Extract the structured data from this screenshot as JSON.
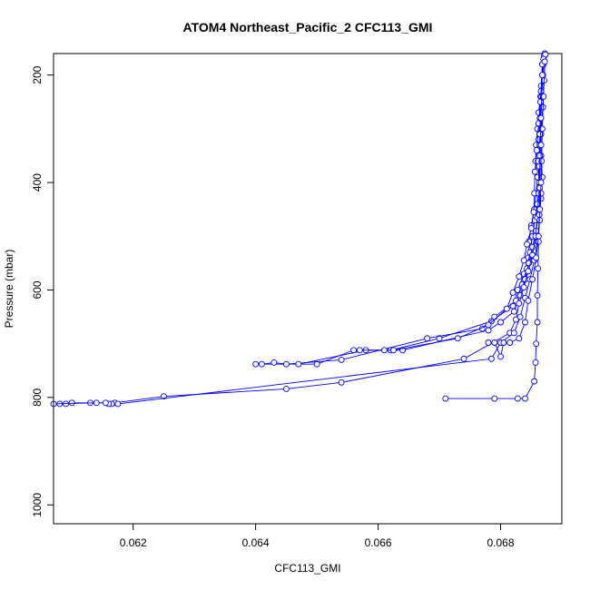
{
  "chart_data": {
    "type": "line",
    "title": "ATOM4 Northeast_Pacific_2 CFC113_GMI",
    "xlabel": "CFC113_GMI",
    "ylabel": "Pressure (mbar)",
    "xlim": [
      0.0607,
      0.069
    ],
    "ylim": [
      1035,
      160
    ],
    "y_reversed": true,
    "x_ticks": [
      {
        "value": 0.062,
        "label": "0.062"
      },
      {
        "value": 0.064,
        "label": "0.064"
      },
      {
        "value": 0.066,
        "label": "0.066"
      },
      {
        "value": 0.068,
        "label": "0.068"
      }
    ],
    "y_ticks": [
      {
        "value": 200,
        "label": "200"
      },
      {
        "value": 400,
        "label": "400"
      },
      {
        "value": 600,
        "label": "600"
      },
      {
        "value": 800,
        "label": "800"
      },
      {
        "value": 1000,
        "label": "1000"
      }
    ],
    "grid": false,
    "legend": "none",
    "series_color": "#0000ff",
    "series": [
      {
        "points": [
          [
            0.06872,
            160
          ],
          [
            0.0687,
            180
          ],
          [
            0.06868,
            200
          ],
          [
            0.06866,
            220
          ],
          [
            0.06865,
            240
          ],
          [
            0.06862,
            270
          ],
          [
            0.0686,
            300
          ],
          [
            0.06858,
            330
          ],
          [
            0.06857,
            360
          ],
          [
            0.0686,
            390
          ],
          [
            0.06858,
            420
          ],
          [
            0.06855,
            450
          ],
          [
            0.0685,
            480
          ],
          [
            0.06846,
            510
          ],
          [
            0.06845,
            540
          ],
          [
            0.06838,
            570
          ],
          [
            0.06828,
            600
          ],
          [
            0.0682,
            630
          ],
          [
            0.06785,
            658
          ],
          [
            0.067,
            690
          ],
          [
            0.0662,
            712
          ],
          [
            0.0656,
            712
          ],
          [
            0.065,
            738
          ],
          [
            0.064,
            738
          ]
        ]
      },
      {
        "points": [
          [
            0.06871,
            165
          ],
          [
            0.06869,
            200
          ],
          [
            0.06867,
            240
          ],
          [
            0.06864,
            280
          ],
          [
            0.06862,
            320
          ],
          [
            0.06861,
            360
          ],
          [
            0.06863,
            400
          ],
          [
            0.0686,
            440
          ],
          [
            0.06856,
            470
          ],
          [
            0.06852,
            500
          ],
          [
            0.06848,
            530
          ],
          [
            0.06843,
            560
          ],
          [
            0.06835,
            590
          ],
          [
            0.06825,
            620
          ],
          [
            0.0679,
            650
          ],
          [
            0.0677,
            672
          ],
          [
            0.0668,
            690
          ],
          [
            0.0654,
            730
          ],
          [
            0.0645,
            738
          ],
          [
            0.0643,
            735
          ],
          [
            0.0641,
            738
          ]
        ]
      },
      {
        "points": [
          [
            0.06873,
            162
          ],
          [
            0.06871,
            210
          ],
          [
            0.06869,
            260
          ],
          [
            0.06866,
            310
          ],
          [
            0.06866,
            350
          ],
          [
            0.06868,
            390
          ],
          [
            0.06866,
            430
          ],
          [
            0.06862,
            460
          ],
          [
            0.06858,
            490
          ],
          [
            0.06852,
            520
          ],
          [
            0.06846,
            550
          ],
          [
            0.0684,
            580
          ],
          [
            0.06832,
            610
          ],
          [
            0.06822,
            640
          ],
          [
            0.068,
            660
          ],
          [
            0.0678,
            675
          ],
          [
            0.0664,
            712
          ],
          [
            0.0658,
            712
          ],
          [
            0.0647,
            738
          ]
        ]
      },
      {
        "points": [
          [
            0.0687,
            170
          ],
          [
            0.06866,
            230
          ],
          [
            0.06862,
            290
          ],
          [
            0.06859,
            340
          ],
          [
            0.06856,
            380
          ],
          [
            0.06855,
            420
          ],
          [
            0.06854,
            455
          ],
          [
            0.0685,
            485
          ],
          [
            0.06843,
            515
          ],
          [
            0.06838,
            545
          ],
          [
            0.0683,
            575
          ],
          [
            0.0682,
            605
          ],
          [
            0.0681,
            635
          ],
          [
            0.0678,
            665
          ],
          [
            0.0673,
            690
          ],
          [
            0.06625,
            712
          ],
          [
            0.0661,
            712
          ],
          [
            0.0657,
            712
          ]
        ]
      },
      {
        "points": [
          [
            0.06868,
            180
          ],
          [
            0.06865,
            250
          ],
          [
            0.06864,
            310
          ],
          [
            0.06863,
            370
          ],
          [
            0.06862,
            420
          ],
          [
            0.0686,
            465
          ],
          [
            0.06857,
            500
          ],
          [
            0.06852,
            535
          ],
          [
            0.06845,
            565
          ],
          [
            0.06838,
            595
          ],
          [
            0.0683,
            625
          ],
          [
            0.06825,
            655
          ],
          [
            0.06815,
            680
          ],
          [
            0.0674,
            728
          ],
          [
            0.0654,
            772
          ],
          [
            0.0645,
            784
          ],
          [
            0.0625,
            798
          ],
          [
            0.0617,
            810
          ],
          [
            0.0613,
            810
          ],
          [
            0.061,
            810
          ],
          [
            0.0609,
            812
          ],
          [
            0.0608,
            812
          ]
        ]
      },
      {
        "points": [
          [
            0.06872,
            175
          ],
          [
            0.0687,
            240
          ],
          [
            0.06868,
            300
          ],
          [
            0.06867,
            360
          ],
          [
            0.06866,
            420
          ],
          [
            0.06864,
            470
          ],
          [
            0.0686,
            510
          ],
          [
            0.06855,
            545
          ],
          [
            0.06848,
            580
          ],
          [
            0.0684,
            615
          ],
          [
            0.06832,
            650
          ],
          [
            0.06822,
            680
          ],
          [
            0.068,
            698
          ],
          [
            0.06785,
            728
          ],
          [
            0.06175,
            812
          ],
          [
            0.06165,
            812
          ],
          [
            0.0616,
            812
          ],
          [
            0.06155,
            810
          ],
          [
            0.0614,
            810
          ],
          [
            0.0607,
            812
          ]
        ]
      },
      {
        "points": [
          [
            0.06868,
            200
          ],
          [
            0.06866,
            280
          ],
          [
            0.06864,
            350
          ],
          [
            0.06864,
            410
          ],
          [
            0.06863,
            460
          ],
          [
            0.06862,
            510
          ],
          [
            0.06861,
            560
          ],
          [
            0.0686,
            610
          ],
          [
            0.0686,
            660
          ],
          [
            0.06858,
            700
          ],
          [
            0.06857,
            735
          ],
          [
            0.06855,
            770
          ],
          [
            0.0684,
            802
          ],
          [
            0.06828,
            802
          ],
          [
            0.0679,
            802
          ],
          [
            0.0671,
            802
          ]
        ]
      },
      {
        "points": [
          [
            0.06866,
            330
          ],
          [
            0.06866,
            400
          ],
          [
            0.06864,
            450
          ],
          [
            0.06862,
            500
          ],
          [
            0.06858,
            540
          ],
          [
            0.06852,
            580
          ],
          [
            0.06845,
            620
          ],
          [
            0.0684,
            660
          ],
          [
            0.0683,
            690
          ],
          [
            0.06815,
            698
          ],
          [
            0.06805,
            698
          ],
          [
            0.068,
            724
          ],
          [
            0.0679,
            698
          ],
          [
            0.0678,
            698
          ]
        ]
      }
    ]
  }
}
